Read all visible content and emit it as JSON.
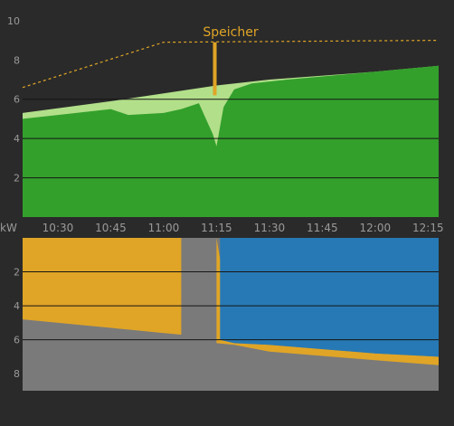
{
  "colors": {
    "background": "#2a2a2a",
    "production_green": "#33a02c",
    "light_green": "#b2df8a",
    "storage_orange": "#e0a526",
    "grid_gray": "#7a7a7a",
    "consumption_blue": "#2779b5",
    "axis_text": "#9a9a9a",
    "grid_line": "#151515"
  },
  "chart_data": [
    {
      "type": "area",
      "title": "",
      "annotation": "Speicher",
      "xlabel": "",
      "ylabel": "",
      "x_ticks": [
        "10:30",
        "10:45",
        "11:00",
        "11:15",
        "11:30",
        "11:45",
        "12:00",
        "12:15"
      ],
      "y_ticks": [
        2,
        4,
        6,
        8,
        10
      ],
      "ylim": [
        0,
        10.5
      ],
      "grid": true,
      "series": [
        {
          "type": "line-dashed",
          "color": "orange",
          "x": [
            "10:20",
            "11:00",
            "12:18"
          ],
          "values": [
            6.6,
            8.9,
            9.0
          ]
        },
        {
          "type": "area",
          "color": "light_green",
          "x": [
            "10:20",
            "10:45",
            "11:00",
            "11:15",
            "11:30",
            "12:00",
            "12:18"
          ],
          "values": [
            5.3,
            5.9,
            6.3,
            6.7,
            7.0,
            7.4,
            7.7
          ]
        },
        {
          "type": "area",
          "color": "green",
          "x": [
            "10:20",
            "10:30",
            "10:45",
            "10:50",
            "11:00",
            "11:05",
            "11:10",
            "11:14",
            "11:15",
            "11:17",
            "11:20",
            "11:25",
            "11:35",
            "12:00",
            "12:18"
          ],
          "values": [
            5.0,
            5.2,
            5.5,
            5.2,
            5.3,
            5.5,
            5.8,
            4.2,
            3.6,
            5.6,
            6.5,
            6.8,
            7.0,
            7.4,
            7.7
          ]
        }
      ]
    },
    {
      "type": "area",
      "title": "",
      "xlabel": "",
      "ylabel": "kW",
      "y_ticks": [
        2,
        4,
        6,
        8
      ],
      "ylim": [
        0,
        9.0
      ],
      "inverted": true,
      "grid": true,
      "series": [
        {
          "type": "area",
          "color": "gray",
          "x": [
            "10:20",
            "12:18"
          ],
          "values": [
            9.0,
            9.0
          ]
        },
        {
          "type": "area",
          "color": "orange",
          "x": [
            "10:20",
            "10:40",
            "10:50",
            "11:00",
            "11:05",
            "11:10",
            "11:15",
            "11:20",
            "11:30",
            "12:00",
            "12:18"
          ],
          "values": [
            4.8,
            5.2,
            5.4,
            5.6,
            5.7,
            6.0,
            6.2,
            6.3,
            6.7,
            7.2,
            7.5
          ]
        },
        {
          "type": "area",
          "color": "blue",
          "x": [
            "10:20",
            "11:15",
            "11:16",
            "11:20",
            "11:30",
            "12:00",
            "12:18"
          ],
          "values": [
            0,
            0,
            6.0,
            6.2,
            6.3,
            6.8,
            7.0
          ]
        }
      ]
    }
  ]
}
